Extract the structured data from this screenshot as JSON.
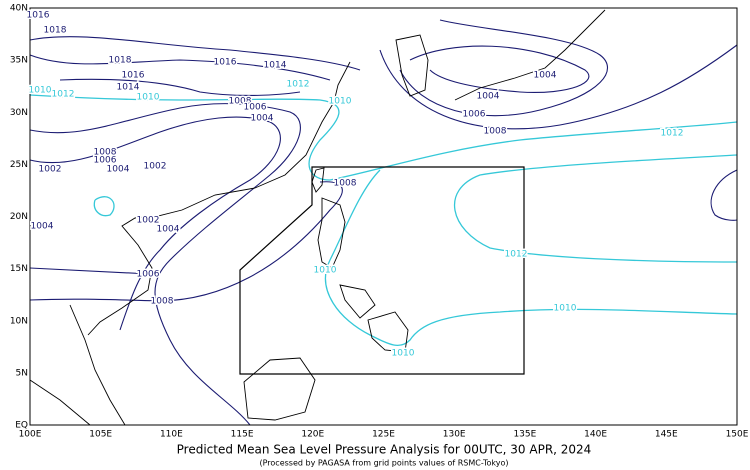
{
  "map": {
    "title": "Predicted Mean Sea Level Pressure Analysis for 00UTC, 30 APR, 2024",
    "subtitle": "(Processed by PAGASA from grid points values of RSMC-Tokyo)",
    "lon_labels": [
      "100E",
      "105E",
      "110E",
      "115E",
      "120E",
      "125E",
      "130E",
      "135E",
      "140E",
      "145E",
      "150E"
    ],
    "lat_labels": [
      "EQ",
      "5N",
      "10N",
      "15N",
      "20N",
      "25N",
      "30N",
      "35N",
      "40N"
    ],
    "isobar_labels": [
      "1016",
      "1018",
      "1018",
      "1016",
      "1014",
      "1016",
      "1014",
      "1012",
      "1010",
      "1010",
      "1012",
      "1010",
      "1008",
      "1006",
      "1004",
      "1008",
      "1006",
      "1004",
      "1002",
      "1002",
      "1008",
      "1004",
      "1004",
      "1006",
      "1008",
      "1012",
      "1012",
      "1002",
      "1004",
      "1004",
      "1006",
      "1008",
      "1010",
      "1010",
      "1010"
    ]
  }
}
